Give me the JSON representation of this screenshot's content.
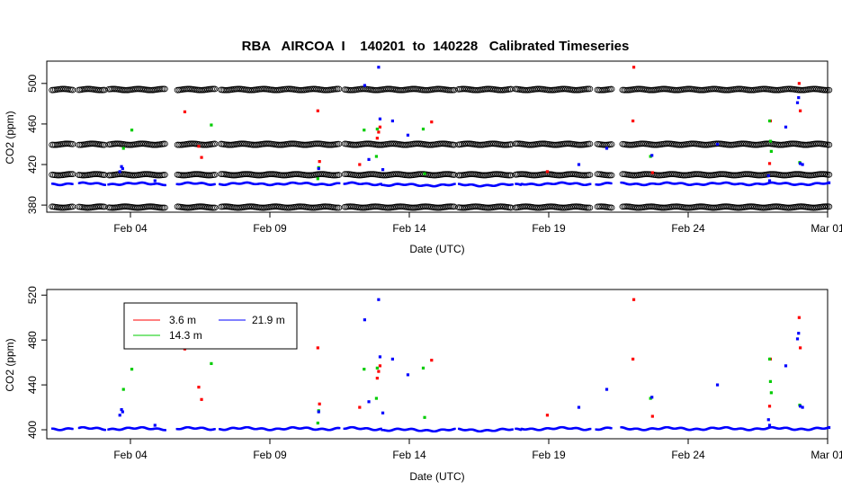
{
  "title": "RBA   AIRCOA  I    140201  to  140228   Calibrated Timeseries",
  "colors": {
    "3.6 m": "#ff0000",
    "14.3 m": "#00cc00",
    "21.9 m": "#0000ff",
    "standards": "#000000"
  },
  "chart_data": [
    {
      "type": "scatter",
      "xlabel": "Date (UTC)",
      "ylabel": "CO2 (ppm)",
      "x_ticks": [
        "Feb 04",
        "Feb 09",
        "Feb 14",
        "Feb 19",
        "Feb 24",
        "Mar 01"
      ],
      "x_tick_days": [
        4,
        9,
        14,
        19,
        24,
        29
      ],
      "xlim": [
        1.0,
        29.0
      ],
      "y_ticks": [
        "380",
        "420",
        "460",
        "500"
      ],
      "ylim": [
        373,
        522
      ],
      "grid": false,
      "legend": "none",
      "standard_levels": [
        378,
        410,
        440,
        494
      ],
      "data_gaps_days": [
        [
          1.95,
          2.15
        ],
        [
          3.1,
          3.2
        ],
        [
          5.25,
          5.65
        ],
        [
          7.05,
          7.2
        ],
        [
          11.5,
          11.65
        ],
        [
          15.65,
          15.75
        ],
        [
          17.7,
          17.8
        ],
        [
          20.5,
          20.7
        ],
        [
          21.25,
          21.6
        ]
      ],
      "series": [
        {
          "name": "3.6 m",
          "x": [
            5.95,
            6.45,
            6.55,
            10.72,
            10.78,
            12.22,
            12.85,
            12.95,
            12.9,
            14.8,
            18.95,
            22.05,
            22.02,
            22.72,
            26.92,
            26.95,
            27.98,
            28.02,
            29.8
          ],
          "y": [
            472,
            438,
            427,
            473,
            423,
            420,
            446,
            457,
            452,
            462,
            413,
            516,
            463,
            412,
            421,
            463,
            500,
            473,
            469
          ]
        },
        {
          "name": "14.3 m",
          "x": [
            3.75,
            4.05,
            6.9,
            10.72,
            10.75,
            12.38,
            12.82,
            12.85,
            14.5,
            14.55,
            22.65,
            26.92,
            26.95,
            26.98,
            28.0
          ],
          "y": [
            436,
            454,
            459,
            406,
            417,
            454,
            428,
            455,
            455,
            411,
            428,
            463,
            443,
            433,
            422
          ]
        },
        {
          "name": "21.9 m",
          "x": [
            3.62,
            3.68,
            3.72,
            4.88,
            10.75,
            12.4,
            12.55,
            12.9,
            12.95,
            13.05,
            13.4,
            13.95,
            20.08,
            21.08,
            22.7,
            25.05,
            26.88,
            26.92,
            27.5,
            27.92,
            27.96,
            28.02,
            28.1,
            29.05
          ],
          "y": [
            413,
            418,
            416,
            404,
            416,
            498,
            425,
            516,
            465,
            415,
            463,
            449,
            420,
            436,
            429,
            440,
            409,
            404,
            457,
            481,
            486,
            421,
            420,
            402
          ]
        },
        {
          "name": "21.9 m continuous",
          "baseline": 401,
          "amplitude": 1.2
        }
      ]
    },
    {
      "type": "scatter",
      "xlabel": "Date (UTC)",
      "ylabel": "CO2 (ppm)",
      "x_ticks": [
        "Feb 04",
        "Feb 09",
        "Feb 14",
        "Feb 19",
        "Feb 24",
        "Mar 01"
      ],
      "x_tick_days": [
        4,
        9,
        14,
        19,
        24,
        29
      ],
      "xlim": [
        1.0,
        29.0
      ],
      "y_ticks": [
        "400",
        "440",
        "480",
        "520"
      ],
      "ylim": [
        392,
        525
      ],
      "grid": false,
      "legend": "top-left",
      "legend_entries": [
        {
          "label": "3.6 m",
          "color": "#ff0000"
        },
        {
          "label": "21.9 m",
          "color": "#0000ff"
        },
        {
          "label": "14.3 m",
          "color": "#00cc00"
        }
      ]
    }
  ]
}
